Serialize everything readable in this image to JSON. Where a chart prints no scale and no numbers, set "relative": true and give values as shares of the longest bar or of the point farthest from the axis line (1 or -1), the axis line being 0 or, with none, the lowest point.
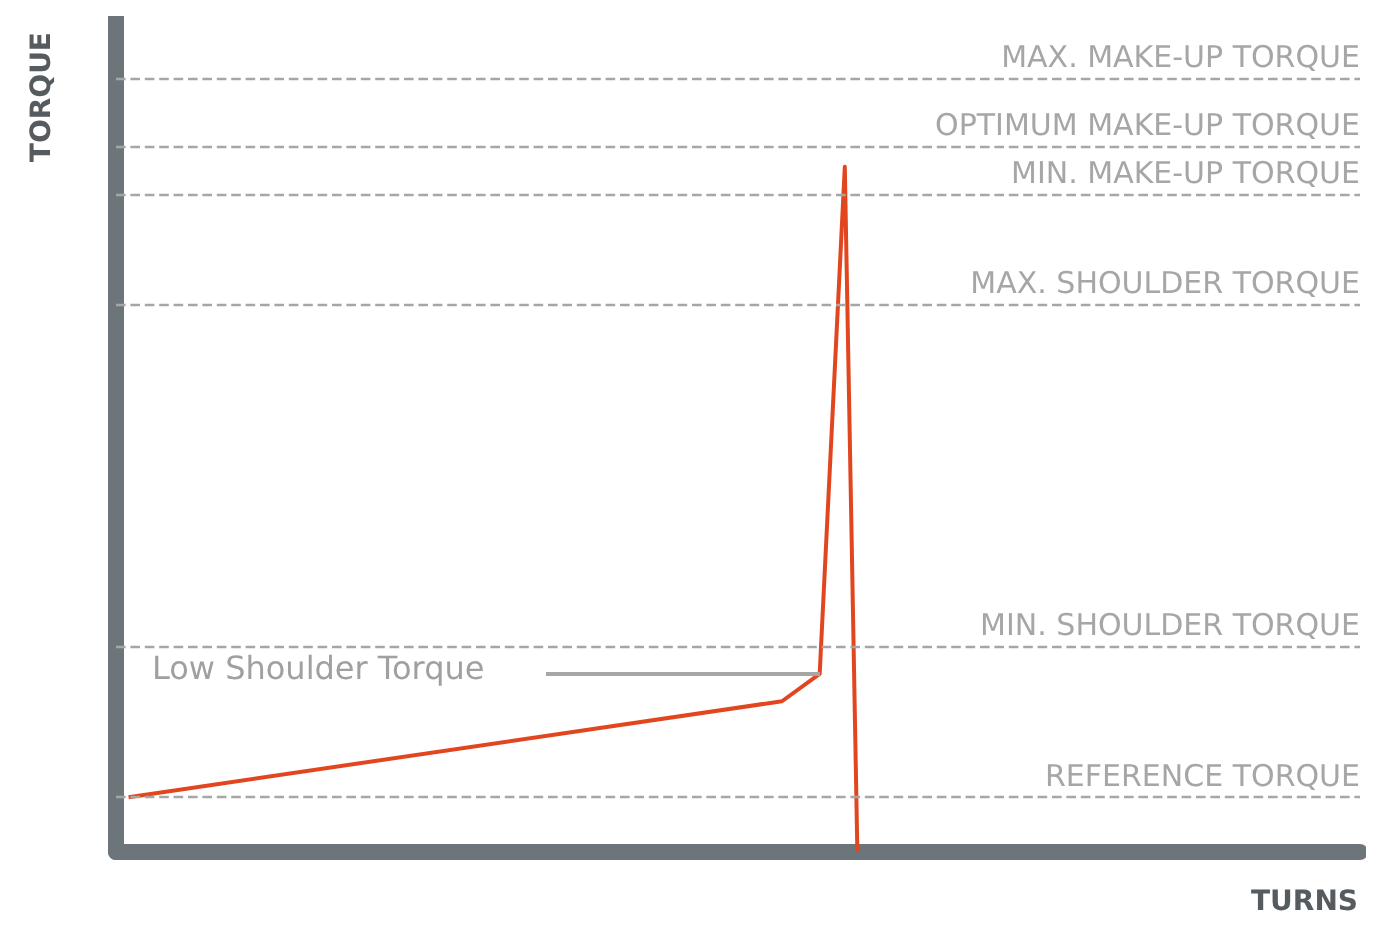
{
  "chart_data": {
    "type": "line",
    "relative": true,
    "xlabel": "TURNS",
    "ylabel": "TORQUE",
    "categories": [
      null,
      null,
      null,
      null,
      null,
      null,
      null,
      null,
      null,
      null,
      null,
      null,
      null,
      null,
      null,
      null,
      null,
      null,
      null,
      null,
      null,
      null,
      null,
      null,
      null,
      null,
      null,
      null,
      null,
      null,
      null,
      null,
      null,
      null,
      null,
      null,
      null,
      null,
      null,
      null,
      null,
      null,
      null,
      null,
      null,
      null,
      null,
      null,
      null,
      null,
      null,
      null,
      null,
      null,
      null,
      null,
      null,
      null,
      null,
      null,
      null,
      null,
      null,
      null,
      null,
      null,
      null,
      null,
      null,
      null,
      null,
      null,
      null,
      null,
      null,
      null,
      null,
      null,
      null,
      null,
      null,
      null,
      null,
      null,
      null,
      null,
      null,
      null,
      null,
      null,
      null,
      null,
      null,
      null,
      null,
      null,
      null,
      null,
      null,
      null
    ],
    "line_style": "solid",
    "series": [
      {
        "color": "#e2461e",
        "values": [
          null,
          0.08,
          null,
          null,
          null,
          null,
          null,
          null,
          null,
          null,
          null,
          null,
          null,
          null,
          null,
          null,
          null,
          null,
          null,
          null,
          null,
          null,
          null,
          null,
          null,
          null,
          null,
          null,
          null,
          null,
          null,
          null,
          null,
          null,
          null,
          null,
          null,
          null,
          null,
          null,
          null,
          null,
          null,
          null,
          null,
          null,
          null,
          null,
          null,
          null,
          null,
          null,
          null,
          0.22,
          null,
          null,
          0.26,
          null,
          1.0,
          0.0,
          null,
          null,
          null,
          null,
          null,
          null,
          null,
          null,
          null,
          null,
          null,
          null,
          null,
          null,
          null,
          null,
          null,
          null,
          null,
          null,
          null,
          null,
          null,
          null,
          null,
          null,
          null,
          null,
          null,
          null,
          null,
          null,
          null,
          null,
          null,
          null,
          null,
          null,
          null,
          null
        ]
      }
    ],
    "ref_lines": [
      {
        "axis": "y",
        "value": 1.13,
        "label": "MAX. MAKE-UP TORQUE",
        "color": "#a6a6a6",
        "line_style": "dashed"
      },
      {
        "axis": "y",
        "value": 1.03,
        "label": "OPTIMUM MAKE-UP TORQUE",
        "color": "#a6a6a6",
        "line_style": "dashed"
      },
      {
        "axis": "y",
        "value": 0.96,
        "label": "MIN. MAKE-UP TORQUE",
        "color": "#a6a6a6",
        "line_style": "dashed"
      },
      {
        "axis": "y",
        "value": 0.8,
        "label": "MAX. SHOULDER TORQUE",
        "color": "#a6a6a6",
        "line_style": "dashed"
      },
      {
        "axis": "y",
        "value": 0.3,
        "label": "MIN. SHOULDER TORQUE",
        "color": "#a6a6a6",
        "line_style": "dashed"
      },
      {
        "axis": "y",
        "value": 0.08,
        "label": "REFERENCE TORQUE",
        "color": "#a6a6a6",
        "line_style": "dashed"
      }
    ],
    "annotations": [
      "Low Shoulder Torque"
    ]
  }
}
